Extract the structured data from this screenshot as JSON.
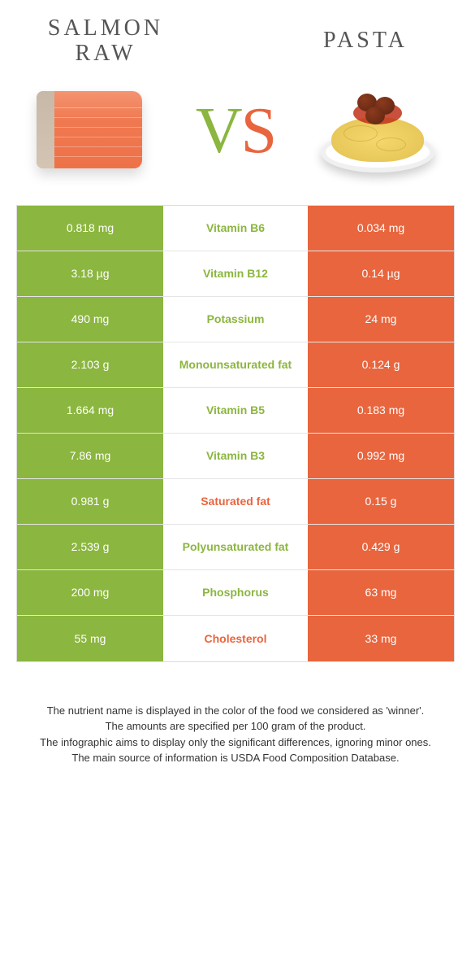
{
  "header": {
    "left_title_line1": "Salmon",
    "left_title_line2": "raw",
    "right_title": "Pasta",
    "vs_v": "V",
    "vs_s": "S"
  },
  "colors": {
    "green": "#8bb63f",
    "orange": "#e8653e"
  },
  "rows": [
    {
      "left": "0.818 mg",
      "label": "Vitamin B6",
      "right": "0.034 mg",
      "winner": "green"
    },
    {
      "left": "3.18 µg",
      "label": "Vitamin B12",
      "right": "0.14 µg",
      "winner": "green"
    },
    {
      "left": "490 mg",
      "label": "Potassium",
      "right": "24 mg",
      "winner": "green"
    },
    {
      "left": "2.103 g",
      "label": "Monounsaturated fat",
      "right": "0.124 g",
      "winner": "green"
    },
    {
      "left": "1.664 mg",
      "label": "Vitamin B5",
      "right": "0.183 mg",
      "winner": "green"
    },
    {
      "left": "7.86 mg",
      "label": "Vitamin B3",
      "right": "0.992 mg",
      "winner": "green"
    },
    {
      "left": "0.981 g",
      "label": "Saturated fat",
      "right": "0.15 g",
      "winner": "orange"
    },
    {
      "left": "2.539 g",
      "label": "Polyunsaturated fat",
      "right": "0.429 g",
      "winner": "green"
    },
    {
      "left": "200 mg",
      "label": "Phosphorus",
      "right": "63 mg",
      "winner": "green"
    },
    {
      "left": "55 mg",
      "label": "Cholesterol",
      "right": "33 mg",
      "winner": "orange"
    }
  ],
  "footer": {
    "l1": "The nutrient name is displayed in the color of the food we considered as 'winner'.",
    "l2": "The amounts are specified per 100 gram of the product.",
    "l3": "The infographic aims to display only the significant differences, ignoring minor ones.",
    "l4": "The main source of information is USDA Food Composition Database."
  }
}
